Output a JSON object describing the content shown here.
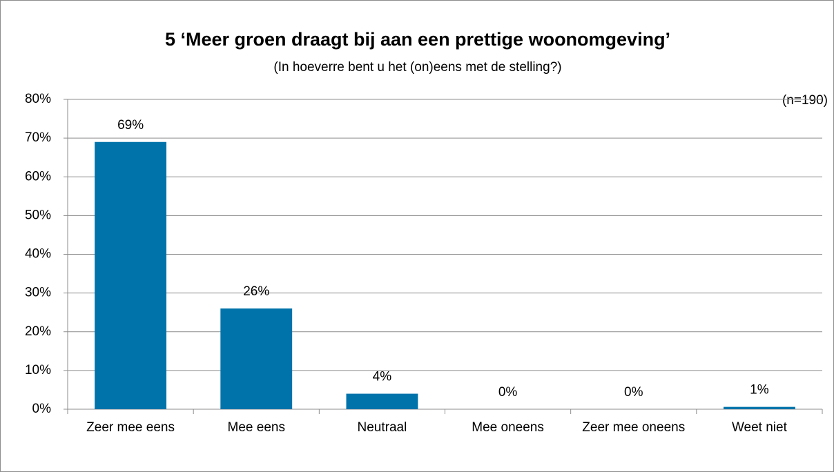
{
  "chart_data": {
    "type": "bar",
    "title": "5 ‘Meer groen draagt bij aan een prettige woonomgeving’",
    "subtitle": "(In hoeverre bent u het (on)eens met de stelling?)",
    "annotation": "(n=190)",
    "categories": [
      "Zeer mee eens",
      "Mee eens",
      "Neutraal",
      "Mee oneens",
      "Zeer mee oneens",
      "Weet niet"
    ],
    "values": [
      69,
      26,
      4,
      0,
      0,
      0.6
    ],
    "value_labels": [
      "69%",
      "26%",
      "4%",
      "0%",
      "0%",
      "1%"
    ],
    "color": "#0073ab",
    "ylim": [
      0,
      80
    ],
    "yticks": [
      {
        "value": 0,
        "label": "0%"
      },
      {
        "value": 10,
        "label": "10%"
      },
      {
        "value": 20,
        "label": "20%"
      },
      {
        "value": 30,
        "label": "30%"
      },
      {
        "value": 40,
        "label": "40%"
      },
      {
        "value": 50,
        "label": "50%"
      },
      {
        "value": 60,
        "label": "60%"
      },
      {
        "value": 70,
        "label": "70%"
      },
      {
        "value": 80,
        "label": "80%"
      }
    ],
    "grid": true
  }
}
